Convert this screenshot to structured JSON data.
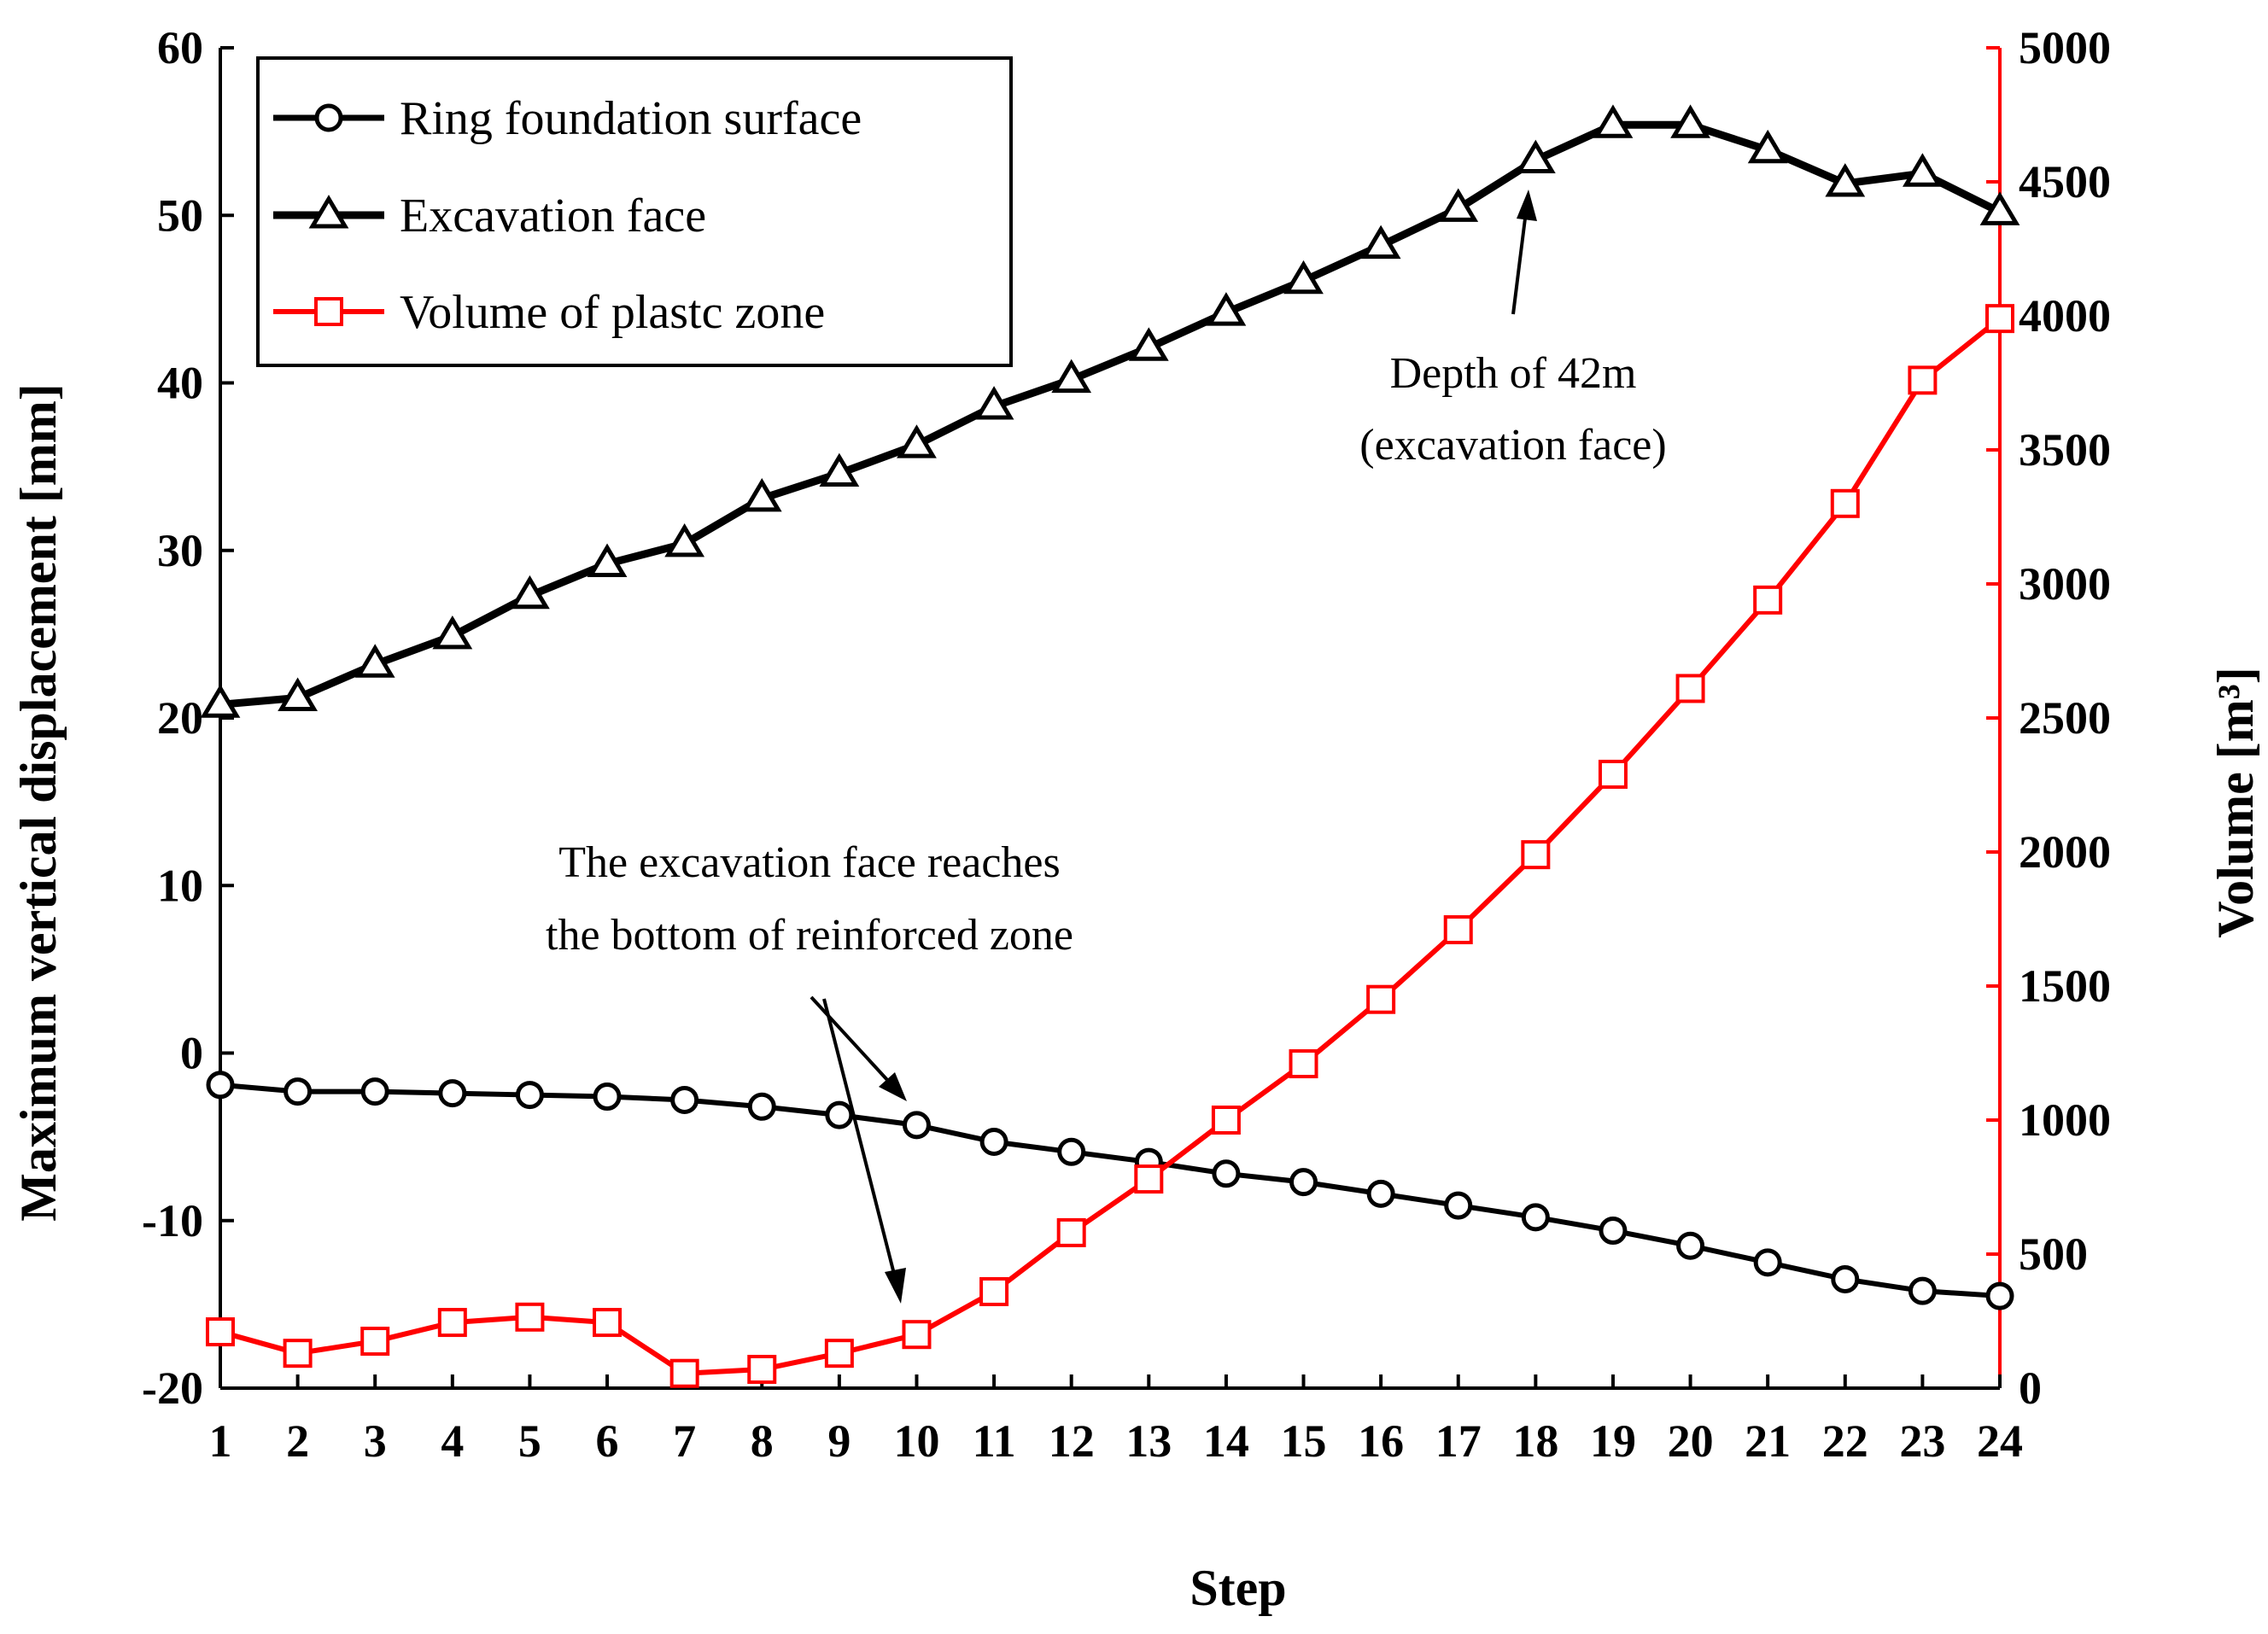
{
  "chart_data": {
    "type": "line",
    "x": [
      1,
      2,
      3,
      4,
      5,
      6,
      7,
      8,
      9,
      10,
      11,
      12,
      13,
      14,
      15,
      16,
      17,
      18,
      19,
      20,
      21,
      22,
      23,
      24
    ],
    "xlabel": "Step",
    "ylabel": "Maximum vertical displacement [mm]",
    "y2label": "Volume [m³]",
    "ylim": [
      -20,
      60
    ],
    "yticks": [
      -20,
      -10,
      0,
      10,
      20,
      30,
      40,
      50,
      60
    ],
    "y2lim": [
      0,
      5000
    ],
    "y2ticks": [
      0,
      500,
      1000,
      1500,
      2000,
      2500,
      3000,
      3500,
      4000,
      4500,
      5000
    ],
    "series": [
      {
        "name": "Ring foundation surface",
        "axis": "left",
        "color": "#000000",
        "marker": "circle",
        "values": [
          -1.9,
          -2.3,
          -2.3,
          -2.4,
          -2.5,
          -2.6,
          -2.8,
          -3.2,
          -3.7,
          -4.3,
          -5.3,
          -5.9,
          -6.5,
          -7.2,
          -7.7,
          -8.4,
          -9.1,
          -9.8,
          -10.6,
          -11.5,
          -12.5,
          -13.5,
          -14.2,
          -14.5
        ]
      },
      {
        "name": "Excavation face",
        "axis": "left",
        "color": "#000000",
        "marker": "triangle",
        "values": [
          20.8,
          21.2,
          23.2,
          24.9,
          27.3,
          29.2,
          30.4,
          33.1,
          34.6,
          36.3,
          38.6,
          40.2,
          42.1,
          44.2,
          46.1,
          48.2,
          50.4,
          53.3,
          55.4,
          55.4,
          53.9,
          51.9,
          52.5,
          50.2
        ]
      },
      {
        "name": "Volume of plastc zone",
        "axis": "right",
        "color": "#ff0000",
        "marker": "square",
        "values": [
          210,
          130,
          175,
          245,
          265,
          245,
          55,
          70,
          130,
          200,
          360,
          580,
          780,
          1000,
          1210,
          1450,
          1710,
          1990,
          2290,
          2610,
          2940,
          3300,
          3760,
          3990
        ]
      }
    ],
    "annotations": [
      {
        "lines": [
          "Depth of 42m",
          "(excavation face)"
        ]
      },
      {
        "lines": [
          "The excavation face reaches",
          "the bottom of reinforced zone"
        ]
      }
    ],
    "legend": "top-left"
  }
}
